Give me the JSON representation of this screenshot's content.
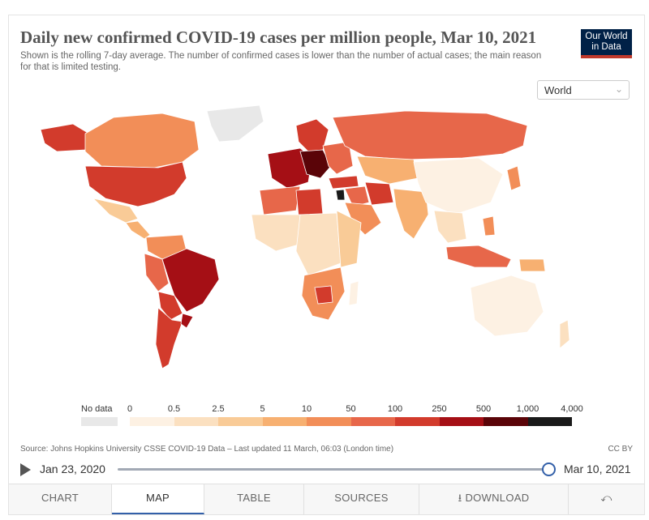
{
  "title": "Daily new confirmed COVID-19 cases per million people, Mar 10, 2021",
  "subtitle": "Shown is the rolling 7-day average. The number of confirmed cases is lower than the number of actual cases; the main reason for that is limited testing.",
  "logo": {
    "line1": "Our World",
    "line2": "in Data"
  },
  "region_select": {
    "value": "World"
  },
  "legend": {
    "no_data_label": "No data",
    "no_data_color": "#e8e8e8",
    "bins": [
      {
        "label": "0",
        "color": "#fdf1e3"
      },
      {
        "label": "0.5",
        "color": "#fbe0c0"
      },
      {
        "label": "2.5",
        "color": "#f9cb97"
      },
      {
        "label": "5",
        "color": "#f7b071"
      },
      {
        "label": "10",
        "color": "#f28e58"
      },
      {
        "label": "50",
        "color": "#e7674a"
      },
      {
        "label": "100",
        "color": "#d23b2c"
      },
      {
        "label": "250",
        "color": "#a50f15"
      },
      {
        "label": "500",
        "color": "#5a0408"
      },
      {
        "label": "1,000",
        "color": "#1a1a1a"
      }
    ],
    "last_label": "4,000"
  },
  "source": "Source: Johns Hopkins University CSSE COVID-19 Data – Last updated 11 March, 06:03 (London time)",
  "license": "CC BY",
  "timeline": {
    "start": "Jan 23, 2020",
    "end": "Mar 10, 2021"
  },
  "tabs": [
    {
      "label": "CHART",
      "active": false
    },
    {
      "label": "MAP",
      "active": true
    },
    {
      "label": "TABLE",
      "active": false
    },
    {
      "label": "SOURCES",
      "active": false
    },
    {
      "label": "DOWNLOAD",
      "active": false
    }
  ],
  "share_icon": "share-icon",
  "regions": [
    {
      "name": "North America (USA)",
      "color": "#d23b2c"
    },
    {
      "name": "Canada",
      "color": "#f28e58"
    },
    {
      "name": "Alaska",
      "color": "#d23b2c"
    },
    {
      "name": "Greenland",
      "color": "#e8e8e8"
    },
    {
      "name": "Mexico",
      "color": "#f9cb97"
    },
    {
      "name": "Central America",
      "color": "#f7b071"
    },
    {
      "name": "Colombia / Venezuela",
      "color": "#f28e58"
    },
    {
      "name": "Peru",
      "color": "#e7674a"
    },
    {
      "name": "Brazil",
      "color": "#a50f15"
    },
    {
      "name": "Bolivia / Paraguay",
      "color": "#d23b2c"
    },
    {
      "name": "Chile / Argentina",
      "color": "#d23b2c"
    },
    {
      "name": "Uruguay",
      "color": "#a50f15"
    },
    {
      "name": "Western Europe",
      "color": "#a50f15"
    },
    {
      "name": "Central Europe",
      "color": "#5a0408"
    },
    {
      "name": "Scandinavia",
      "color": "#d23b2c"
    },
    {
      "name": "Eastern Europe",
      "color": "#e7674a"
    },
    {
      "name": "Russia",
      "color": "#e7674a"
    },
    {
      "name": "Kazakhstan / Central Asia",
      "color": "#f7b071"
    },
    {
      "name": "Turkey",
      "color": "#d23b2c"
    },
    {
      "name": "Middle East",
      "color": "#e7674a"
    },
    {
      "name": "Israel / Jordan",
      "color": "#1a1a1a"
    },
    {
      "name": "Arabian Peninsula",
      "color": "#f28e58"
    },
    {
      "name": "Iran",
      "color": "#d23b2c"
    },
    {
      "name": "North Africa",
      "color": "#e7674a"
    },
    {
      "name": "Libya",
      "color": "#d23b2c"
    },
    {
      "name": "West Africa",
      "color": "#fbe0c0"
    },
    {
      "name": "Central Africa",
      "color": "#fbe0c0"
    },
    {
      "name": "East Africa",
      "color": "#f9cb97"
    },
    {
      "name": "Southern Africa",
      "color": "#f28e58"
    },
    {
      "name": "Botswana",
      "color": "#d23b2c"
    },
    {
      "name": "Madagascar",
      "color": "#fdf1e3"
    },
    {
      "name": "India / South Asia",
      "color": "#f7b071"
    },
    {
      "name": "Mongolia / China",
      "color": "#fdf1e3"
    },
    {
      "name": "Japan",
      "color": "#f28e58"
    },
    {
      "name": "Southeast Asia",
      "color": "#fbe0c0"
    },
    {
      "name": "Malaysia / Indonesia",
      "color": "#e7674a"
    },
    {
      "name": "Philippines",
      "color": "#f28e58"
    },
    {
      "name": "Papua New Guinea",
      "color": "#f7b071"
    },
    {
      "name": "Australia",
      "color": "#fdf1e3"
    },
    {
      "name": "New Zealand",
      "color": "#fbe0c0"
    }
  ]
}
